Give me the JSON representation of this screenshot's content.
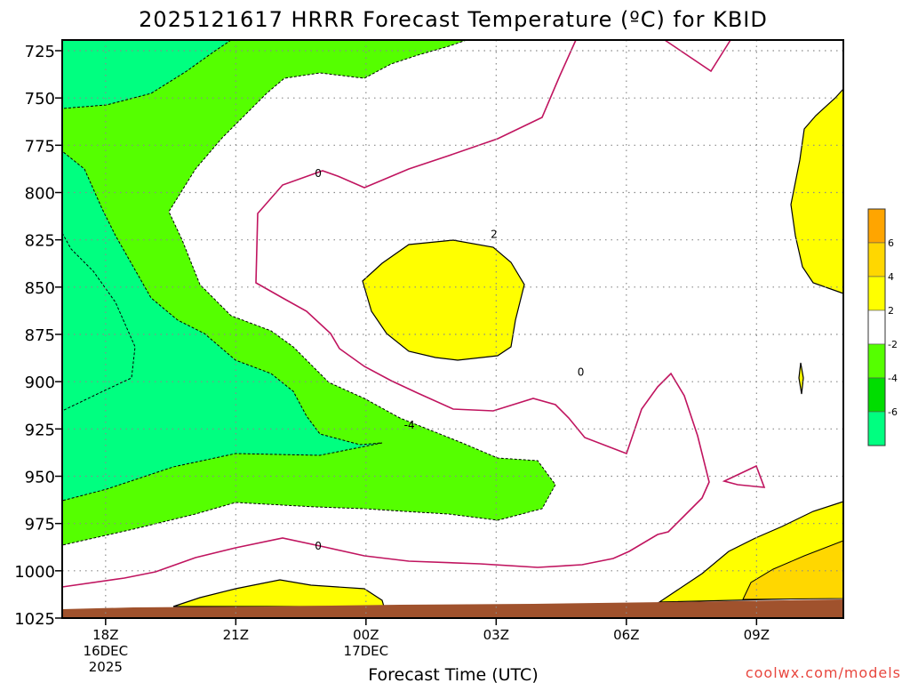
{
  "title": "2025121617 HRRR Forecast Temperature (ºC) for KBID",
  "credit": "coolwx.com/models",
  "chart_data": {
    "type": "contour",
    "title": "2025121617 HRRR Forecast Temperature (ºC) for KBID",
    "xlabel": "Forecast Time (UTC)",
    "ylabel": "",
    "x_ticks": [
      {
        "label": "18Z",
        "sub": [
          "16DEC",
          "2025"
        ]
      },
      {
        "label": "21Z",
        "sub": []
      },
      {
        "label": "00Z",
        "sub": [
          "17DEC"
        ]
      },
      {
        "label": "03Z",
        "sub": []
      },
      {
        "label": "06Z",
        "sub": []
      },
      {
        "label": "09Z",
        "sub": []
      }
    ],
    "x_hours": [
      18,
      21,
      24,
      27,
      30,
      33
    ],
    "xlim": [
      17,
      35
    ],
    "y_ticks": [
      "725",
      "750",
      "775",
      "800",
      "825",
      "850",
      "875",
      "900",
      "925",
      "950",
      "975",
      "1000",
      "1025"
    ],
    "ylim": [
      725,
      1025
    ],
    "y_scale": "pressure (hPa), surface at bottom",
    "grid": true,
    "contour_labels": [
      {
        "text": "0",
        "x_hour": 22.9,
        "pressure": 790
      },
      {
        "text": "2",
        "x_hour": 26.95,
        "pressure": 822
      },
      {
        "text": "0",
        "x_hour": 28.95,
        "pressure": 895
      },
      {
        "text": "-4",
        "x_hour": 25.0,
        "pressure": 923
      },
      {
        "text": "0",
        "x_hour": 22.9,
        "pressure": 987
      }
    ],
    "colorbar": {
      "ticks": [
        "6",
        "4",
        "2",
        "-2",
        "-4",
        "-6"
      ],
      "bins": [
        {
          "color": "#ffa500"
        },
        {
          "color": "#ffd700"
        },
        {
          "color": "#ffff00"
        },
        {
          "color": "#ffffff"
        },
        {
          "color": "#55ff00"
        },
        {
          "color": "#00dd00"
        },
        {
          "color": "#00ff80"
        }
      ]
    },
    "colors": {
      "zero_isotherm": "#c0145f",
      "green_band": "#55ff00",
      "teal_band": "#00ff80",
      "yellow_band": "#ffff00",
      "gold_band": "#ffd700",
      "ground": "#a0522d"
    }
  }
}
